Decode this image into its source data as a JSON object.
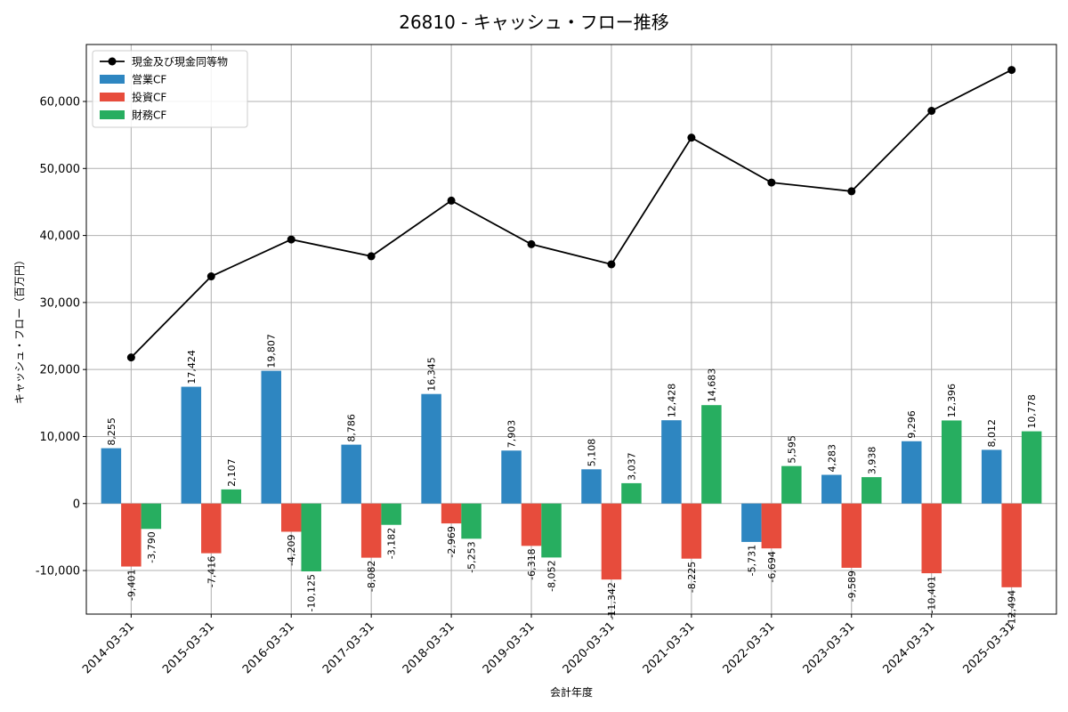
{
  "chart_data": {
    "type": "bar",
    "title": "26810 - キャッシュ・フロー推移",
    "xlabel": "会計年度",
    "ylabel": "キャッシュ・フロー（百万円）",
    "ylim": [
      -16500,
      68500
    ],
    "yticks": [
      -10000,
      0,
      10000,
      20000,
      30000,
      40000,
      50000,
      60000
    ],
    "ytick_labels": [
      "-10,000",
      "0",
      "10,000",
      "20,000",
      "30,000",
      "40,000",
      "50,000",
      "60,000"
    ],
    "grid": true,
    "legend_position": "top-left",
    "categories": [
      "2014-03-31",
      "2015-03-31",
      "2016-03-31",
      "2017-03-31",
      "2018-03-31",
      "2019-03-31",
      "2020-03-31",
      "2021-03-31",
      "2022-03-31",
      "2023-03-31",
      "2024-03-31",
      "2025-03-31"
    ],
    "series": [
      {
        "name": "営業CF",
        "kind": "bar",
        "color": "#2e86c1",
        "values": [
          8255,
          17424,
          19807,
          8786,
          16345,
          7903,
          5108,
          12428,
          -5731,
          4283,
          9296,
          8012
        ],
        "labels": [
          "8,255",
          "17,424",
          "19,807",
          "8,786",
          "16,345",
          "7,903",
          "5,108",
          "12,428",
          "-5,731",
          "4,283",
          "9,296",
          "8,012"
        ]
      },
      {
        "name": "投資CF",
        "kind": "bar",
        "color": "#e74c3c",
        "values": [
          -9401,
          -7416,
          -4209,
          -8082,
          -2969,
          -6318,
          -11342,
          -8225,
          -6694,
          -9589,
          -10401,
          -12494
        ],
        "labels": [
          "-9,401",
          "-7,416",
          "-4,209",
          "-8,082",
          "-2,969",
          "-6,318",
          "-11,342",
          "-8,225",
          "-6,694",
          "-9,589",
          "-10,401",
          "-12,494"
        ]
      },
      {
        "name": "財務CF",
        "kind": "bar",
        "color": "#27ae60",
        "values": [
          -3790,
          2107,
          -10125,
          -3182,
          -5253,
          -8052,
          3037,
          14683,
          5595,
          3938,
          12396,
          10778
        ],
        "labels": [
          "-3,790",
          "2,107",
          "-10,125",
          "-3,182",
          "-5,253",
          "-8,052",
          "3,037",
          "14,683",
          "5,595",
          "3,938",
          "12,396",
          "10,778"
        ]
      },
      {
        "name": "現金及び現金同等物",
        "kind": "line",
        "color": "#000000",
        "values": [
          21800,
          33900,
          39400,
          36900,
          45200,
          38700,
          35700,
          54600,
          47900,
          46600,
          58600,
          64700
        ]
      }
    ]
  }
}
